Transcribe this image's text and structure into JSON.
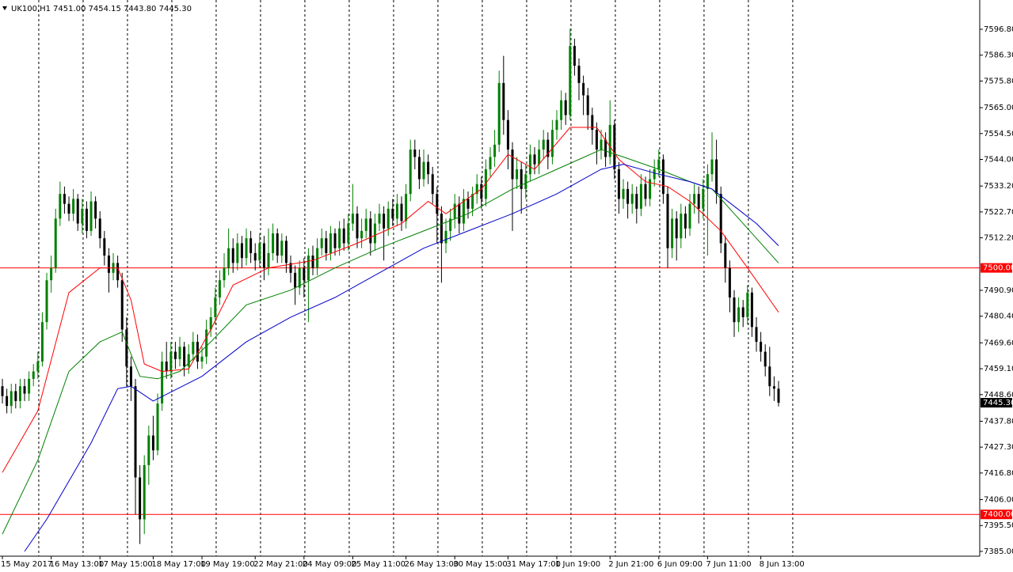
{
  "header": {
    "symbol": "UK100,H1",
    "quote": "7451.00 7454.15 7443.80 7445.30"
  },
  "chart_data": {
    "type": "candlestick",
    "up_color": "#008000",
    "down_color": "#000000",
    "xlim": [
      -0.54,
      220.36
    ],
    "ylim": [
      7383.06,
      7608.67
    ],
    "yticks": [
      {
        "value": 7596.8,
        "label": "7596.80"
      },
      {
        "value": 7586.3,
        "label": "7586.30"
      },
      {
        "value": 7575.8,
        "label": "7575.80"
      },
      {
        "value": 7565,
        "label": "7565.00"
      },
      {
        "value": 7554.5,
        "label": "7554.50"
      },
      {
        "value": 7544,
        "label": "7544.00"
      },
      {
        "value": 7533.2,
        "label": "7533.20"
      },
      {
        "value": 7522.7,
        "label": "7522.70"
      },
      {
        "value": 7512.2,
        "label": "7512.20"
      },
      {
        "value": 7490.9,
        "label": "7490.90"
      },
      {
        "value": 7480.4,
        "label": "7480.40"
      },
      {
        "value": 7469.6,
        "label": "7469.60"
      },
      {
        "value": 7459.1,
        "label": "7459.10"
      },
      {
        "value": 7448.6,
        "label": "7448.60"
      },
      {
        "value": 7437.8,
        "label": "7437.80"
      },
      {
        "value": 7427.3,
        "label": "7427.30"
      },
      {
        "value": 7416.8,
        "label": "7416.80"
      },
      {
        "value": 7406,
        "label": "7406.00"
      },
      {
        "value": 7395.5,
        "label": "7395.50"
      },
      {
        "value": 7385,
        "label": "7385.00"
      }
    ],
    "xticks": [
      {
        "value": 0,
        "label": "15 May 2017"
      },
      {
        "value": 11,
        "label": "16 May 13:00"
      },
      {
        "value": 22,
        "label": "17 May 15:00"
      },
      {
        "value": 34,
        "label": "18 May 17:00"
      },
      {
        "value": 45,
        "label": "19 May 19:00"
      },
      {
        "value": 57,
        "label": "22 May 21:00"
      },
      {
        "value": 68,
        "label": "24 May 09:00"
      },
      {
        "value": 79,
        "label": "25 May 11:00"
      },
      {
        "value": 91,
        "label": "26 May 13:00"
      },
      {
        "value": 102,
        "label": "30 May 15:00"
      },
      {
        "value": 114,
        "label": "31 May 17:00"
      },
      {
        "value": 125,
        "label": "1 Jun 19:00"
      },
      {
        "value": 137,
        "label": "2 Jun 21:00"
      },
      {
        "value": 148,
        "label": "6 Jun 09:00"
      },
      {
        "value": 159,
        "label": "7 Jun 11:00"
      },
      {
        "value": 171,
        "label": "8 Jun 13:00"
      }
    ],
    "grid": true,
    "xgrid": [
      8.2,
      18.2,
      28.2,
      38.2,
      48.2,
      58.2,
      68.2,
      78.2,
      88.2,
      98.2,
      108.2,
      118.2,
      128.2,
      138.2,
      148.2,
      158.2,
      168.2,
      178.2
    ],
    "levels": [
      {
        "value": 7500,
        "label": "7500.00",
        "color": "#ff0000"
      },
      {
        "value": 7400,
        "label": "7400.00",
        "color": "#ff0000"
      }
    ],
    "last_price": {
      "value": 7445.3,
      "label": "7445.30"
    },
    "candles": [
      [
        7452,
        7455,
        7445,
        7448
      ],
      [
        7448,
        7451,
        7441,
        7444
      ],
      [
        7444,
        7453,
        7441,
        7450
      ],
      [
        7450,
        7453,
        7443,
        7446
      ],
      [
        7446,
        7455,
        7443,
        7452
      ],
      [
        7452,
        7455,
        7446,
        7449
      ],
      [
        7449,
        7458,
        7446,
        7455
      ],
      [
        7455,
        7461,
        7452,
        7458
      ],
      [
        7458,
        7466,
        7455,
        7462
      ],
      [
        7462,
        7482,
        7460,
        7478
      ],
      [
        7478,
        7498,
        7475,
        7495
      ],
      [
        7495,
        7505,
        7490,
        7500
      ],
      [
        7500,
        7524,
        7498,
        7520
      ],
      [
        7520,
        7535,
        7517,
        7530
      ],
      [
        7530,
        7533,
        7522,
        7526
      ],
      [
        7526,
        7529,
        7519,
        7522
      ],
      [
        7522,
        7532,
        7519,
        7528
      ],
      [
        7528,
        7530,
        7515,
        7518
      ],
      [
        7518,
        7528,
        7514,
        7524
      ],
      [
        7524,
        7527,
        7512,
        7515
      ],
      [
        7515,
        7531,
        7513,
        7527
      ],
      [
        7527,
        7529,
        7516,
        7520
      ],
      [
        7520,
        7523,
        7508,
        7512
      ],
      [
        7512,
        7515,
        7501,
        7505
      ],
      [
        7505,
        7508,
        7490,
        7498
      ],
      [
        7498,
        7506,
        7495,
        7502
      ],
      [
        7502,
        7505,
        7492,
        7495
      ],
      [
        7495,
        7498,
        7470,
        7475
      ],
      [
        7475,
        7480,
        7452,
        7460
      ],
      [
        7460,
        7464,
        7446,
        7452
      ],
      [
        7452,
        7455,
        7400,
        7415
      ],
      [
        7415,
        7420,
        7388,
        7398
      ],
      [
        7398,
        7424,
        7392,
        7420
      ],
      [
        7420,
        7436,
        7412,
        7432
      ],
      [
        7432,
        7440,
        7422,
        7426
      ],
      [
        7426,
        7449,
        7424,
        7445
      ],
      [
        7445,
        7466,
        7442,
        7462
      ],
      [
        7462,
        7470,
        7455,
        7458
      ],
      [
        7458,
        7470,
        7455,
        7466
      ],
      [
        7466,
        7470,
        7459,
        7463
      ],
      [
        7463,
        7472,
        7460,
        7468
      ],
      [
        7468,
        7470,
        7456,
        7460
      ],
      [
        7460,
        7469,
        7457,
        7465
      ],
      [
        7465,
        7474,
        7462,
        7470
      ],
      [
        7470,
        7473,
        7459,
        7462
      ],
      [
        7462,
        7468,
        7459,
        7464
      ],
      [
        7464,
        7479,
        7461,
        7475
      ],
      [
        7475,
        7484,
        7472,
        7480
      ],
      [
        7480,
        7492,
        7477,
        7488
      ],
      [
        7488,
        7499,
        7485,
        7495
      ],
      [
        7495,
        7506,
        7492,
        7500
      ],
      [
        7500,
        7516,
        7497,
        7508
      ],
      [
        7508,
        7512,
        7498,
        7502
      ],
      [
        7502,
        7514,
        7499,
        7510
      ],
      [
        7510,
        7513,
        7500,
        7504
      ],
      [
        7504,
        7516,
        7501,
        7512
      ],
      [
        7512,
        7515,
        7502,
        7506
      ],
      [
        7506,
        7510,
        7499,
        7503
      ],
      [
        7503,
        7514,
        7500,
        7510
      ],
      [
        7510,
        7513,
        7495,
        7500
      ],
      [
        7500,
        7516,
        7497,
        7506
      ],
      [
        7506,
        7518,
        7503,
        7514
      ],
      [
        7514,
        7516,
        7502,
        7505
      ],
      [
        7505,
        7514,
        7502,
        7511
      ],
      [
        7511,
        7513,
        7498,
        7502
      ],
      [
        7502,
        7505,
        7494,
        7498
      ],
      [
        7498,
        7501,
        7485,
        7492
      ],
      [
        7492,
        7503,
        7489,
        7500
      ],
      [
        7500,
        7504,
        7488,
        7495
      ],
      [
        7495,
        7508,
        7478,
        7505
      ],
      [
        7505,
        7509,
        7497,
        7500
      ],
      [
        7500,
        7512,
        7497,
        7508
      ],
      [
        7508,
        7516,
        7505,
        7512
      ],
      [
        7512,
        7515,
        7503,
        7506
      ],
      [
        7506,
        7517,
        7503,
        7514
      ],
      [
        7514,
        7516,
        7505,
        7508
      ],
      [
        7508,
        7519,
        7505,
        7516
      ],
      [
        7516,
        7520,
        7507,
        7510
      ],
      [
        7510,
        7522,
        7507,
        7518
      ],
      [
        7518,
        7534,
        7515,
        7522
      ],
      [
        7522,
        7525,
        7508,
        7512
      ],
      [
        7512,
        7520,
        7508,
        7515
      ],
      [
        7515,
        7524,
        7512,
        7520
      ],
      [
        7520,
        7523,
        7505,
        7510
      ],
      [
        7510,
        7522,
        7507,
        7518
      ],
      [
        7518,
        7526,
        7515,
        7522
      ],
      [
        7522,
        7525,
        7503,
        7516
      ],
      [
        7516,
        7527,
        7513,
        7524
      ],
      [
        7524,
        7528,
        7517,
        7520
      ],
      [
        7520,
        7530,
        7517,
        7526
      ],
      [
        7526,
        7529,
        7515,
        7519
      ],
      [
        7519,
        7534,
        7516,
        7530
      ],
      [
        7530,
        7552,
        7527,
        7548
      ],
      [
        7548,
        7552,
        7540,
        7545
      ],
      [
        7545,
        7548,
        7532,
        7536
      ],
      [
        7536,
        7548,
        7533,
        7543
      ],
      [
        7543,
        7546,
        7534,
        7538
      ],
      [
        7538,
        7541,
        7526,
        7530
      ],
      [
        7530,
        7533,
        7510,
        7522
      ],
      [
        7522,
        7525,
        7494,
        7510
      ],
      [
        7510,
        7520,
        7506,
        7515
      ],
      [
        7515,
        7524,
        7511,
        7520
      ],
      [
        7520,
        7530,
        7516,
        7526
      ],
      [
        7526,
        7529,
        7514,
        7518
      ],
      [
        7518,
        7532,
        7515,
        7528
      ],
      [
        7528,
        7531,
        7520,
        7524
      ],
      [
        7524,
        7533,
        7521,
        7530
      ],
      [
        7530,
        7538,
        7526,
        7534
      ],
      [
        7534,
        7537,
        7524,
        7528
      ],
      [
        7528,
        7544,
        7525,
        7540
      ],
      [
        7540,
        7549,
        7537,
        7545
      ],
      [
        7545,
        7556,
        7541,
        7550
      ],
      [
        7550,
        7580,
        7547,
        7575
      ],
      [
        7575,
        7586,
        7554,
        7560
      ],
      [
        7560,
        7564,
        7540,
        7548
      ],
      [
        7548,
        7551,
        7515,
        7536
      ],
      [
        7536,
        7545,
        7532,
        7540
      ],
      [
        7540,
        7543,
        7522,
        7532
      ],
      [
        7532,
        7542,
        7528,
        7538
      ],
      [
        7538,
        7550,
        7535,
        7546
      ],
      [
        7546,
        7549,
        7538,
        7542
      ],
      [
        7542,
        7552,
        7538,
        7548
      ],
      [
        7548,
        7556,
        7544,
        7552
      ],
      [
        7552,
        7555,
        7540,
        7545
      ],
      [
        7545,
        7560,
        7542,
        7556
      ],
      [
        7556,
        7564,
        7552,
        7560
      ],
      [
        7560,
        7572,
        7556,
        7568
      ],
      [
        7568,
        7571,
        7558,
        7562
      ],
      [
        7562,
        7597,
        7560,
        7590
      ],
      [
        7590,
        7593,
        7578,
        7582
      ],
      [
        7582,
        7585,
        7568,
        7575
      ],
      [
        7575,
        7578,
        7562,
        7570
      ],
      [
        7570,
        7573,
        7556,
        7562
      ],
      [
        7562,
        7565,
        7550,
        7556
      ],
      [
        7556,
        7559,
        7542,
        7548
      ],
      [
        7548,
        7556,
        7544,
        7552
      ],
      [
        7552,
        7555,
        7541,
        7545
      ],
      [
        7545,
        7568,
        7542,
        7558
      ],
      [
        7558,
        7560,
        7536,
        7540
      ],
      [
        7540,
        7543,
        7522,
        7528
      ],
      [
        7528,
        7536,
        7524,
        7532
      ],
      [
        7532,
        7535,
        7520,
        7526
      ],
      [
        7526,
        7534,
        7522,
        7530
      ],
      [
        7530,
        7533,
        7518,
        7524
      ],
      [
        7524,
        7538,
        7521,
        7534
      ],
      [
        7534,
        7537,
        7525,
        7528
      ],
      [
        7528,
        7540,
        7525,
        7536
      ],
      [
        7536,
        7544,
        7533,
        7540
      ],
      [
        7540,
        7548,
        7537,
        7544
      ],
      [
        7544,
        7546,
        7526,
        7530
      ],
      [
        7530,
        7533,
        7500,
        7508
      ],
      [
        7508,
        7524,
        7504,
        7520
      ],
      [
        7520,
        7523,
        7503,
        7512
      ],
      [
        7512,
        7526,
        7508,
        7522
      ],
      [
        7522,
        7525,
        7512,
        7516
      ],
      [
        7516,
        7530,
        7513,
        7526
      ],
      [
        7526,
        7534,
        7522,
        7530
      ],
      [
        7530,
        7533,
        7518,
        7524
      ],
      [
        7524,
        7536,
        7520,
        7532
      ],
      [
        7532,
        7542,
        7505,
        7538
      ],
      [
        7538,
        7555,
        7535,
        7544
      ],
      [
        7544,
        7552,
        7526,
        7530
      ],
      [
        7530,
        7533,
        7506,
        7510
      ],
      [
        7510,
        7513,
        7494,
        7500
      ],
      [
        7500,
        7503,
        7482,
        7488
      ],
      [
        7488,
        7491,
        7472,
        7478
      ],
      [
        7478,
        7488,
        7474,
        7484
      ],
      [
        7484,
        7487,
        7476,
        7480
      ],
      [
        7480,
        7493,
        7477,
        7490
      ],
      [
        7490,
        7492,
        7472,
        7476
      ],
      [
        7476,
        7480,
        7466,
        7470
      ],
      [
        7470,
        7474,
        7462,
        7466
      ],
      [
        7466,
        7469,
        7456,
        7460
      ],
      [
        7460,
        7468,
        7448,
        7452
      ],
      [
        7452,
        7456,
        7446,
        7451
      ],
      [
        7451,
        7454.15,
        7443.8,
        7445.3
      ]
    ],
    "lines": [
      {
        "color": "#ff0000",
        "x": [
          0,
          8,
          15,
          22,
          26,
          29,
          32,
          36,
          42,
          47,
          52,
          60,
          70,
          80,
          90,
          96,
          100,
          108,
          114,
          120,
          128,
          134,
          139,
          145,
          150,
          155,
          162,
          168,
          175
        ],
        "values": [
          7417,
          7442,
          7490,
          7500,
          7500,
          7487,
          7461,
          7458,
          7459,
          7475,
          7493,
          7500,
          7503,
          7510,
          7518,
          7527,
          7522,
          7532,
          7546,
          7540,
          7557,
          7557,
          7544,
          7535,
          7533,
          7527,
          7515,
          7500,
          7482
        ]
      },
      {
        "color": "#008000",
        "x": [
          0,
          8,
          15,
          22,
          27,
          31,
          35,
          40,
          47,
          55,
          65,
          75,
          85,
          95,
          105,
          115,
          125,
          135,
          140,
          148,
          155,
          160,
          165,
          170,
          175
        ],
        "values": [
          7392,
          7422,
          7458,
          7470,
          7474,
          7456,
          7455,
          7458,
          7470,
          7485,
          7491,
          7500,
          7508,
          7515,
          7522,
          7532,
          7540,
          7548,
          7545,
          7540,
          7535,
          7532,
          7522,
          7512,
          7502
        ]
      },
      {
        "color": "#0000cc",
        "x": [
          5,
          10,
          20,
          26,
          29,
          34,
          45,
          55,
          65,
          75,
          85,
          95,
          105,
          115,
          125,
          135,
          140,
          148,
          155,
          160,
          165,
          170,
          175
        ],
        "values": [
          7385,
          7398,
          7429,
          7451,
          7452,
          7446,
          7456,
          7470,
          7480,
          7488,
          7498,
          7508,
          7515,
          7522,
          7530,
          7540,
          7542,
          7538,
          7535,
          7532,
          7525,
          7518,
          7509
        ]
      }
    ]
  }
}
